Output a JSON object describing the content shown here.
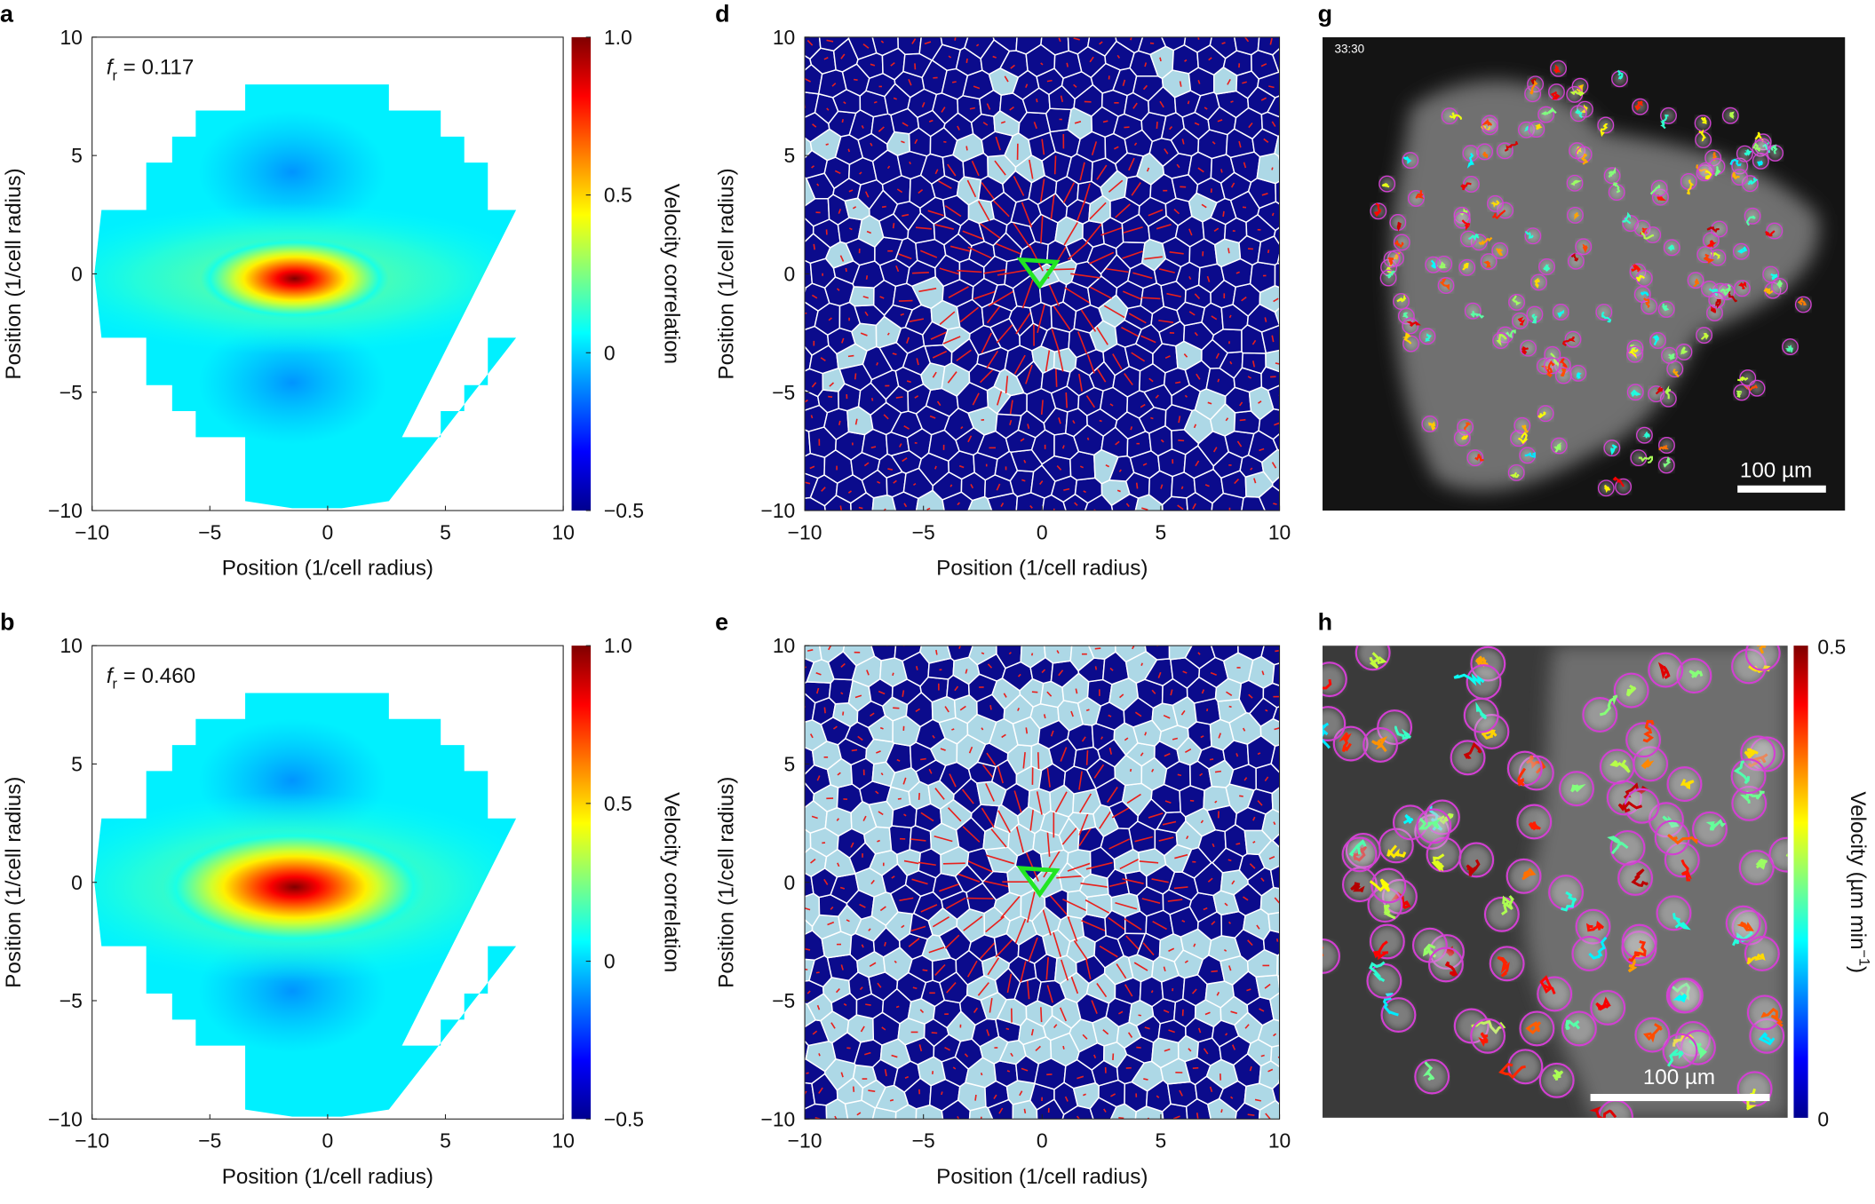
{
  "panel_labels": {
    "a": "a",
    "b": "b",
    "d": "d",
    "e": "e",
    "g": "g",
    "h": "h"
  },
  "annotations": {
    "a": {
      "symbol": "f",
      "subscript": "r",
      "text": " = 0.117"
    },
    "b": {
      "symbol": "f",
      "subscript": "r",
      "text": " = 0.460"
    }
  },
  "colors": {
    "cell_dark": "#0b0b8c",
    "cell_light": "#add8e6",
    "cell_edge": "#ffffff",
    "velocity_marker": "#e8201c",
    "highlight_cell": "#22e622",
    "track_circle": "#d23fd2"
  },
  "chart_data": [
    {
      "panel": "a",
      "type": "heatmap",
      "colormap": "jet",
      "fr": 0.117,
      "xlabel": "Position (1/cell radius)",
      "ylabel": "Position (1/cell radius)",
      "xlim": [
        -10,
        10
      ],
      "ylim": [
        -10,
        10
      ],
      "xticks": [
        "−10",
        "−5",
        "0",
        "5",
        "10"
      ],
      "yticks": [
        "−10",
        "−5",
        "0",
        "5",
        "10"
      ],
      "peak": {
        "x": -1.2,
        "y": -0.3,
        "value": 1.0
      },
      "colorbar": {
        "label": "Velocity correlation",
        "range": [
          -0.5,
          1.0
        ],
        "ticks": [
          "1.0",
          "0.5",
          "0",
          "−0.5"
        ]
      }
    },
    {
      "panel": "b",
      "type": "heatmap",
      "colormap": "jet",
      "fr": 0.46,
      "xlabel": "Position (1/cell radius)",
      "ylabel": "Position (1/cell radius)",
      "xlim": [
        -10,
        10
      ],
      "ylim": [
        -10,
        10
      ],
      "xticks": [
        "−10",
        "−5",
        "0",
        "5",
        "10"
      ],
      "yticks": [
        "−10",
        "−5",
        "0",
        "5",
        "10"
      ],
      "peak": {
        "x": -1.5,
        "y": 0,
        "value": 1.0
      },
      "colorbar": {
        "label": "Velocity correlation",
        "range": [
          -0.5,
          1.0
        ],
        "ticks": [
          "1.0",
          "0.5",
          "0",
          "−0.5"
        ]
      }
    },
    {
      "panel": "d",
      "type": "map",
      "light_cell_fraction": 0.117,
      "xlabel": "Position (1/cell radius)",
      "ylabel": "Position (1/cell radius)",
      "xlim": [
        -10,
        10
      ],
      "ylim": [
        -10,
        10
      ],
      "xticks": [
        "−10",
        "−5",
        "0",
        "5",
        "10"
      ],
      "yticks": [
        "−10",
        "−5",
        "0",
        "5",
        "10"
      ]
    },
    {
      "panel": "e",
      "type": "map",
      "light_cell_fraction": 0.46,
      "xlabel": "Position (1/cell radius)",
      "ylabel": "Position (1/cell radius)",
      "xlim": [
        -10,
        10
      ],
      "ylim": [
        -10,
        10
      ],
      "xticks": [
        "−10",
        "−5",
        "0",
        "5",
        "10"
      ],
      "yticks": [
        "−10",
        "−5",
        "0",
        "5",
        "10"
      ]
    }
  ],
  "microscopy": {
    "g": {
      "timestamp": "33:30",
      "scalebar": "100 µm"
    },
    "h": {
      "scalebar": "100 µm",
      "colorbar": {
        "label": "Velocity (µm min",
        "label_sup": "−1",
        "label_end": ")",
        "range": [
          0,
          0.5
        ],
        "ticks": [
          "0.5",
          "0"
        ]
      }
    }
  }
}
